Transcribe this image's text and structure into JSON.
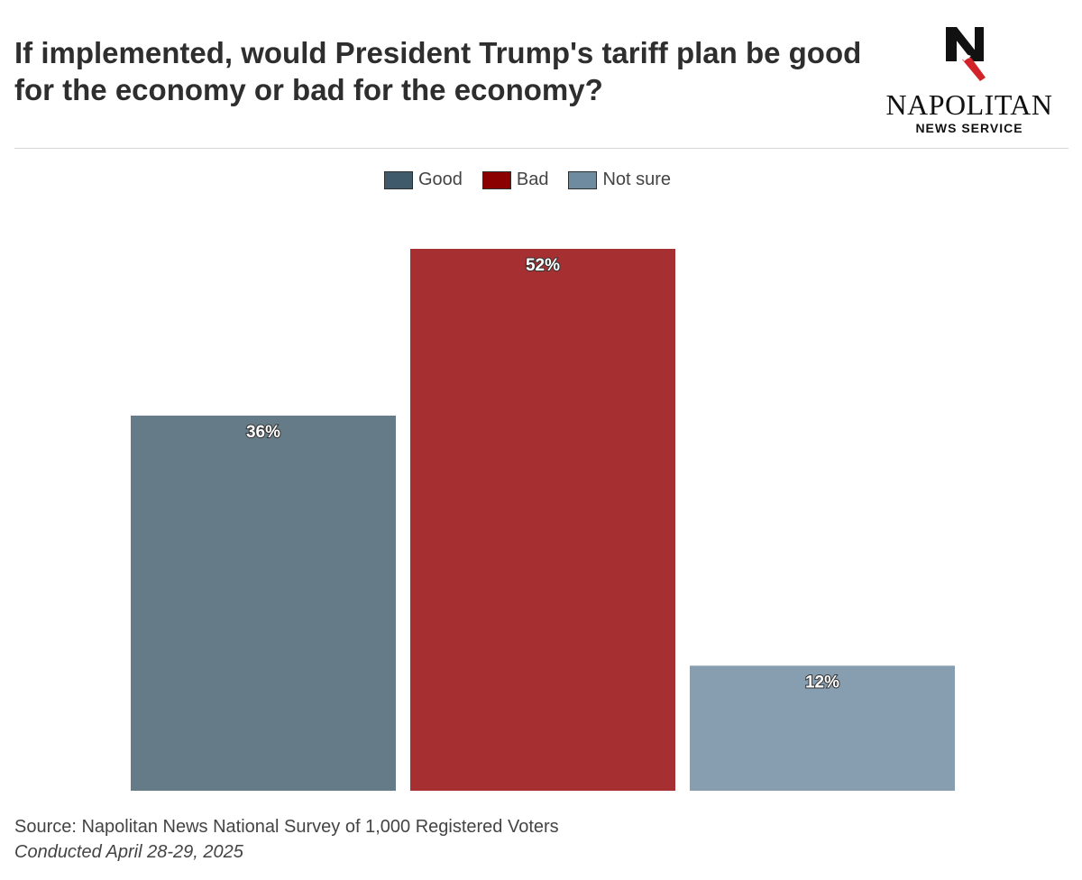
{
  "header": {
    "title": "If implemented, would President Trump's tariff plan be good for the economy or bad for the economy?"
  },
  "logo": {
    "brand": "NAPOLITAN",
    "sub": "NEWS SERVICE"
  },
  "legend": [
    {
      "label": "Good",
      "color": "#3f5a6b"
    },
    {
      "label": "Bad",
      "color": "#8b0000"
    },
    {
      "label": "Not sure",
      "color": "#6f8ba0"
    }
  ],
  "chart_data": {
    "type": "bar",
    "categories": [
      "Good",
      "Bad",
      "Not sure"
    ],
    "values": [
      36,
      52,
      12
    ],
    "data_labels": [
      "36%",
      "52%",
      "12%"
    ],
    "colors": [
      "#657c88",
      "#a52f31",
      "#879eb0"
    ],
    "ylim": [
      0,
      52
    ],
    "grid": false,
    "legend_position": "top-center"
  },
  "footer": {
    "source": "Source: Napolitan News National Survey of 1,000 Registered Voters",
    "date": "Conducted April 28-29, 2025"
  }
}
